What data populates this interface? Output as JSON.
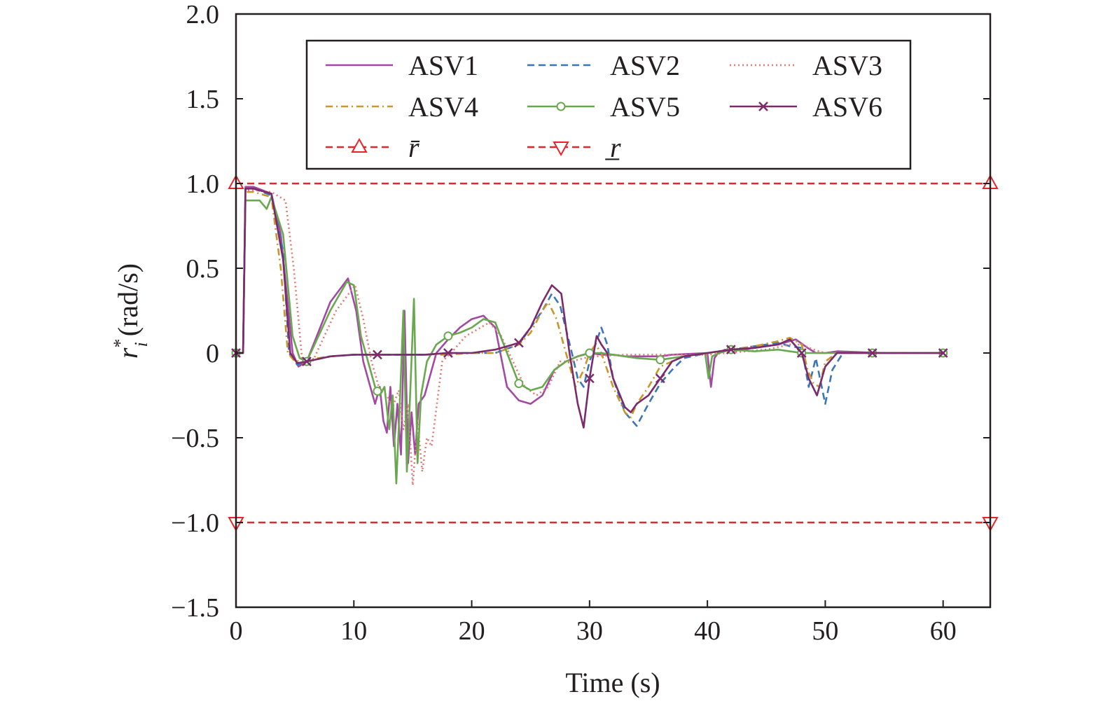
{
  "chart_data": {
    "type": "line",
    "xlabel": "Time (s)",
    "ylabel_main": "r",
    "ylabel_sup": "*",
    "ylabel_sub": "i",
    "ylabel_unit": "(rad/s)",
    "xlim": [
      0,
      64
    ],
    "ylim": [
      -1.5,
      2.0
    ],
    "xticks": [
      0,
      10,
      20,
      30,
      40,
      50,
      60
    ],
    "xtick_labels": [
      "0",
      "10",
      "20",
      "30",
      "40",
      "50",
      "60"
    ],
    "yticks": [
      -1.5,
      -1.0,
      -0.5,
      0,
      0.5,
      1.0,
      1.5,
      2.0
    ],
    "ytick_labels": [
      "−1.5",
      "−1.0",
      "−0.5",
      "0",
      "0.5",
      "1.0",
      "1.5",
      "2.0"
    ],
    "grid": false,
    "legend_position": "top",
    "series": [
      {
        "name": "ASV1",
        "color": "#a349a4",
        "style": "solid",
        "marker": "none",
        "x": [
          0,
          0.6,
          0.8,
          1.5,
          3,
          3.8,
          4.3,
          4.8,
          5.3,
          6,
          8,
          9.5,
          10.2,
          10.8,
          11.4,
          11.8,
          12.2,
          12.5,
          12.8,
          13.1,
          13.4,
          13.7,
          14.0,
          14.3,
          14.6,
          14.9,
          15.2,
          15.5,
          16,
          17,
          18,
          19,
          20,
          21,
          22,
          23,
          24,
          25,
          26,
          27,
          28,
          29,
          30,
          31,
          32,
          33,
          34,
          35,
          36,
          37,
          40,
          40.3,
          40.6,
          40.9,
          41.5,
          42,
          46,
          47.5,
          48.5,
          49.2,
          50,
          51,
          55,
          60
        ],
        "y": [
          0,
          0,
          0.98,
          0.98,
          0.94,
          0.7,
          0.35,
          0,
          -0.08,
          -0.05,
          0.3,
          0.44,
          0.25,
          -0.05,
          -0.2,
          -0.3,
          -0.2,
          -0.4,
          -0.47,
          -0.2,
          -0.55,
          -0.3,
          -0.6,
          0.25,
          -0.65,
          -0.35,
          -0.6,
          -0.3,
          -0.25,
          0.0,
          0.08,
          0.15,
          0.2,
          0.22,
          0.15,
          -0.2,
          -0.28,
          -0.3,
          -0.25,
          -0.1,
          -0.05,
          -0.02,
          0.0,
          -0.01,
          -0.01,
          -0.02,
          -0.02,
          -0.02,
          -0.02,
          -0.01,
          0.0,
          -0.2,
          -0.03,
          0.0,
          0.02,
          0.01,
          0.05,
          0.08,
          0.03,
          0.0,
          0.0,
          0.01,
          0.0,
          0.0
        ]
      },
      {
        "name": "ASV2",
        "color": "#3b76b8",
        "style": "dashed",
        "marker": "none",
        "x": [
          0,
          0.6,
          0.8,
          1.5,
          3,
          4,
          4.5,
          5.2,
          6,
          8,
          10,
          12,
          14,
          16,
          18,
          20,
          22,
          24,
          25,
          26,
          26.8,
          27.5,
          28.5,
          29,
          29.5,
          30,
          30.5,
          31,
          31.5,
          32,
          33,
          34,
          35,
          36,
          37,
          38,
          40,
          42,
          44,
          46,
          47,
          48,
          48.6,
          49.2,
          50,
          50.6,
          51.5,
          53,
          56,
          60
        ],
        "y": [
          0,
          0,
          0.97,
          0.97,
          0.93,
          0.6,
          0.0,
          -0.07,
          -0.05,
          -0.02,
          -0.01,
          -0.01,
          -0.01,
          -0.01,
          0.0,
          0.0,
          0.0,
          0.05,
          0.15,
          0.25,
          0.35,
          0.28,
          0.0,
          -0.15,
          -0.2,
          -0.05,
          0.05,
          0.15,
          0.05,
          -0.15,
          -0.35,
          -0.43,
          -0.3,
          -0.18,
          -0.1,
          -0.03,
          0.0,
          0.02,
          0.04,
          0.06,
          0.04,
          0.03,
          -0.2,
          -0.03,
          -0.3,
          -0.1,
          0.0,
          0.0,
          0.0,
          0.0
        ]
      },
      {
        "name": "ASV3",
        "color": "#e07a72",
        "style": "dotted",
        "marker": "none",
        "x": [
          0,
          0.6,
          0.8,
          1.6,
          3,
          4.2,
          4.9,
          5.6,
          6.5,
          8.5,
          10.1,
          10.8,
          11.5,
          12.2,
          12.8,
          13.3,
          13.8,
          14.2,
          14.6,
          15.0,
          15.4,
          15.8,
          16.2,
          16.6,
          17.5,
          18.5,
          19.5,
          20.5,
          21.5,
          22.5,
          23.5,
          24.5,
          25.5,
          26.5,
          27.5,
          28.5,
          29.5,
          30.5,
          33,
          36,
          40,
          45,
          47,
          48,
          49,
          50,
          51,
          53,
          56,
          60
        ],
        "y": [
          0,
          0,
          0.96,
          0.96,
          0.95,
          0.9,
          0.5,
          -0.03,
          -0.05,
          0.25,
          0.4,
          0.2,
          -0.05,
          -0.22,
          -0.25,
          -0.32,
          -0.22,
          -0.45,
          -0.3,
          -0.78,
          -0.4,
          -0.7,
          -0.5,
          -0.55,
          -0.05,
          0.02,
          0.1,
          0.14,
          0.18,
          0.1,
          -0.05,
          -0.2,
          -0.25,
          -0.2,
          -0.05,
          -0.05,
          -0.03,
          -0.02,
          -0.01,
          -0.01,
          -0.01,
          0.02,
          0.05,
          0.05,
          0.02,
          0.0,
          0.0,
          0.0,
          0.0,
          0.0
        ]
      },
      {
        "name": "ASV4",
        "color": "#c8962a",
        "style": "dashdot",
        "marker": "none",
        "x": [
          0,
          0.6,
          0.8,
          1.5,
          3,
          3.8,
          4.4,
          5.0,
          6,
          8,
          10,
          12,
          14,
          16,
          18,
          20,
          22,
          24,
          25,
          26,
          26.5,
          27.2,
          28,
          28.8,
          29.5,
          30,
          30.5,
          31,
          32,
          33,
          33.5,
          34,
          35,
          36,
          37,
          38,
          40,
          42,
          44,
          46,
          47,
          48,
          48.5,
          49,
          49.5,
          50,
          51,
          53,
          56,
          60
        ],
        "y": [
          0,
          0,
          0.95,
          0.95,
          0.92,
          0.5,
          0.0,
          -0.05,
          -0.04,
          -0.02,
          -0.01,
          -0.01,
          -0.01,
          -0.01,
          -0.01,
          0.0,
          0.0,
          0.05,
          0.12,
          0.25,
          0.3,
          0.2,
          0.0,
          -0.2,
          -0.1,
          0.0,
          0.05,
          0.0,
          -0.2,
          -0.35,
          -0.38,
          -0.3,
          -0.2,
          -0.08,
          -0.05,
          -0.02,
          0.0,
          0.02,
          0.04,
          0.07,
          0.09,
          0.05,
          -0.1,
          -0.18,
          -0.2,
          -0.05,
          0.0,
          0.0,
          0.0,
          0.0
        ]
      },
      {
        "name": "ASV5",
        "color": "#6aa84f",
        "style": "solid",
        "marker": "circle",
        "x": [
          0,
          0.6,
          0.8,
          2.0,
          2.6,
          3.0,
          4.0,
          4.8,
          5.4,
          6,
          8,
          9.4,
          10.0,
          10.6,
          11.2,
          11.8,
          12.2,
          12.6,
          13.0,
          13.3,
          13.6,
          13.9,
          14.2,
          14.5,
          14.8,
          15.1,
          15.4,
          15.7,
          16.2,
          17,
          18,
          19,
          20,
          21,
          22,
          23,
          24,
          25,
          26,
          27,
          28,
          29,
          30,
          31,
          32,
          33,
          34,
          36,
          38,
          39.8,
          40.1,
          40.4,
          41,
          42,
          44,
          46,
          48,
          50,
          52,
          55,
          60
        ],
        "y": [
          0,
          0,
          0.9,
          0.9,
          0.85,
          0.92,
          0.7,
          0.1,
          -0.03,
          -0.05,
          0.25,
          0.42,
          0.4,
          0.1,
          -0.05,
          -0.2,
          -0.25,
          -0.2,
          -0.45,
          -0.25,
          -0.77,
          -0.3,
          0.25,
          -0.7,
          -0.2,
          0.32,
          -0.65,
          -0.25,
          -0.05,
          0.05,
          0.1,
          0.12,
          0.15,
          0.2,
          0.18,
          0.0,
          -0.18,
          -0.22,
          -0.2,
          -0.1,
          -0.05,
          -0.02,
          0.0,
          0.0,
          -0.01,
          -0.02,
          -0.03,
          -0.04,
          -0.02,
          0.0,
          -0.15,
          -0.02,
          0.0,
          0.02,
          0.01,
          0.02,
          0.0,
          0.0,
          0.0,
          0.0,
          0.0
        ]
      },
      {
        "name": "ASV6",
        "color": "#7b2a6b",
        "style": "solid",
        "marker": "x",
        "x": [
          0,
          0.6,
          0.8,
          1.5,
          3,
          4.0,
          4.6,
          5.2,
          6,
          8,
          10,
          12,
          14,
          16,
          18,
          20,
          22,
          24,
          25,
          26,
          26.8,
          27.6,
          28.3,
          29.0,
          29.5,
          30.0,
          30.6,
          31.0,
          31.5,
          32,
          33,
          33.5,
          34,
          35,
          36,
          37,
          38,
          40,
          42,
          44,
          46,
          47,
          48,
          48.6,
          49.3,
          50,
          51,
          53,
          56,
          60
        ],
        "y": [
          0,
          0,
          0.97,
          0.97,
          0.94,
          0.55,
          0.0,
          -0.06,
          -0.05,
          -0.02,
          -0.01,
          -0.01,
          -0.01,
          -0.01,
          0.0,
          0.0,
          0.02,
          0.06,
          0.15,
          0.3,
          0.4,
          0.35,
          0.0,
          -0.3,
          -0.44,
          -0.15,
          0.1,
          0.05,
          0.0,
          -0.15,
          -0.32,
          -0.35,
          -0.3,
          -0.25,
          -0.15,
          -0.05,
          -0.02,
          0.0,
          0.02,
          0.03,
          0.05,
          0.08,
          0.0,
          -0.15,
          -0.25,
          -0.08,
          0.0,
          0.0,
          0.0,
          0.0
        ]
      },
      {
        "name": "r̄",
        "color": "#e8252b",
        "style": "dashed",
        "marker": "triangle-up",
        "x": [
          0,
          64
        ],
        "y": [
          1.0,
          1.0
        ]
      },
      {
        "name": "r̲",
        "color": "#e8252b",
        "style": "dashed",
        "marker": "triangle-down",
        "x": [
          0,
          64
        ],
        "y": [
          -1.0,
          -1.0
        ]
      }
    ],
    "marker_x": [
      0,
      6,
      12,
      18,
      24,
      30,
      36,
      42,
      48,
      54,
      60
    ]
  }
}
